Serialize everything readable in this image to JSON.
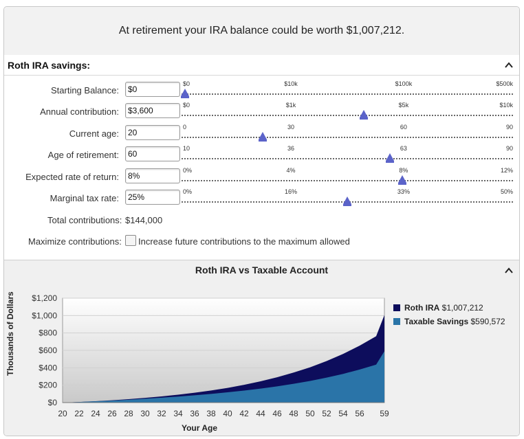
{
  "headline": "At retirement your IRA balance could be worth $1,007,212.",
  "savings_section": {
    "title": "Roth IRA savings:",
    "rows": [
      {
        "label": "Starting Balance:",
        "value": "$0",
        "ticks": [
          "$0",
          "$10k",
          "$100k",
          "$500k"
        ],
        "thumb": 0.01
      },
      {
        "label": "Annual contribution:",
        "value": "$3,600",
        "ticks": [
          "$0",
          "$1k",
          "$5k",
          "$10k"
        ],
        "thumb": 0.55
      },
      {
        "label": "Current age:",
        "value": "20",
        "ticks": [
          "0",
          "30",
          "60",
          "90"
        ],
        "thumb": 0.245
      },
      {
        "label": "Age of retirement:",
        "value": "60",
        "ticks": [
          "10",
          "36",
          "63",
          "90"
        ],
        "thumb": 0.628
      },
      {
        "label": "Expected rate of return:",
        "value": "8%",
        "ticks": [
          "0%",
          "4%",
          "8%",
          "12%"
        ],
        "thumb": 0.665
      },
      {
        "label": "Marginal tax rate:",
        "value": "25%",
        "ticks": [
          "0%",
          "16%",
          "33%",
          "50%"
        ],
        "thumb": 0.5
      }
    ],
    "total_label": "Total contributions:",
    "total_value": "$144,000",
    "maximize_label": "Maximize contributions:",
    "maximize_text": "Increase future contributions to the maximum allowed"
  },
  "chart_section": {
    "title": "Roth IRA vs Taxable Account"
  },
  "legend": {
    "roth_name": "Roth IRA",
    "roth_value": "$1,007,212",
    "taxable_name": "Taxable Savings",
    "taxable_value": "$590,572"
  },
  "colors": {
    "roth": "#0d0d5c",
    "taxable": "#2a74a8",
    "thumb": "#5b63c9"
  },
  "chart_data": {
    "type": "area",
    "ylabel": "Thousands of Dollars",
    "xlabel": "Your Age",
    "x": [
      20,
      22,
      24,
      26,
      28,
      30,
      32,
      34,
      36,
      38,
      40,
      42,
      44,
      46,
      48,
      50,
      52,
      54,
      56,
      58,
      59
    ],
    "x_tick_labels": [
      "20",
      "22",
      "24",
      "26",
      "28",
      "30",
      "32",
      "34",
      "36",
      "38",
      "40",
      "42",
      "44",
      "46",
      "48",
      "50",
      "52",
      "54",
      "56",
      "59"
    ],
    "y_tick_labels": [
      "$0",
      "$200",
      "$400",
      "$600",
      "$800",
      "$1,000",
      "$1,200"
    ],
    "ylim": [
      0,
      1200
    ],
    "grid": true,
    "series": [
      {
        "name": "Roth IRA",
        "values": [
          0,
          7,
          16,
          27,
          39,
          54,
          71,
          91,
          113,
          139,
          169,
          204,
          245,
          291,
          345,
          406,
          478,
          560,
          654,
          763,
          1007
        ]
      },
      {
        "name": "Taxable Savings",
        "values": [
          0,
          7,
          15,
          23,
          33,
          44,
          56,
          69,
          84,
          100,
          118,
          138,
          161,
          187,
          216,
          249,
          287,
          330,
          380,
          436,
          590
        ]
      }
    ]
  }
}
